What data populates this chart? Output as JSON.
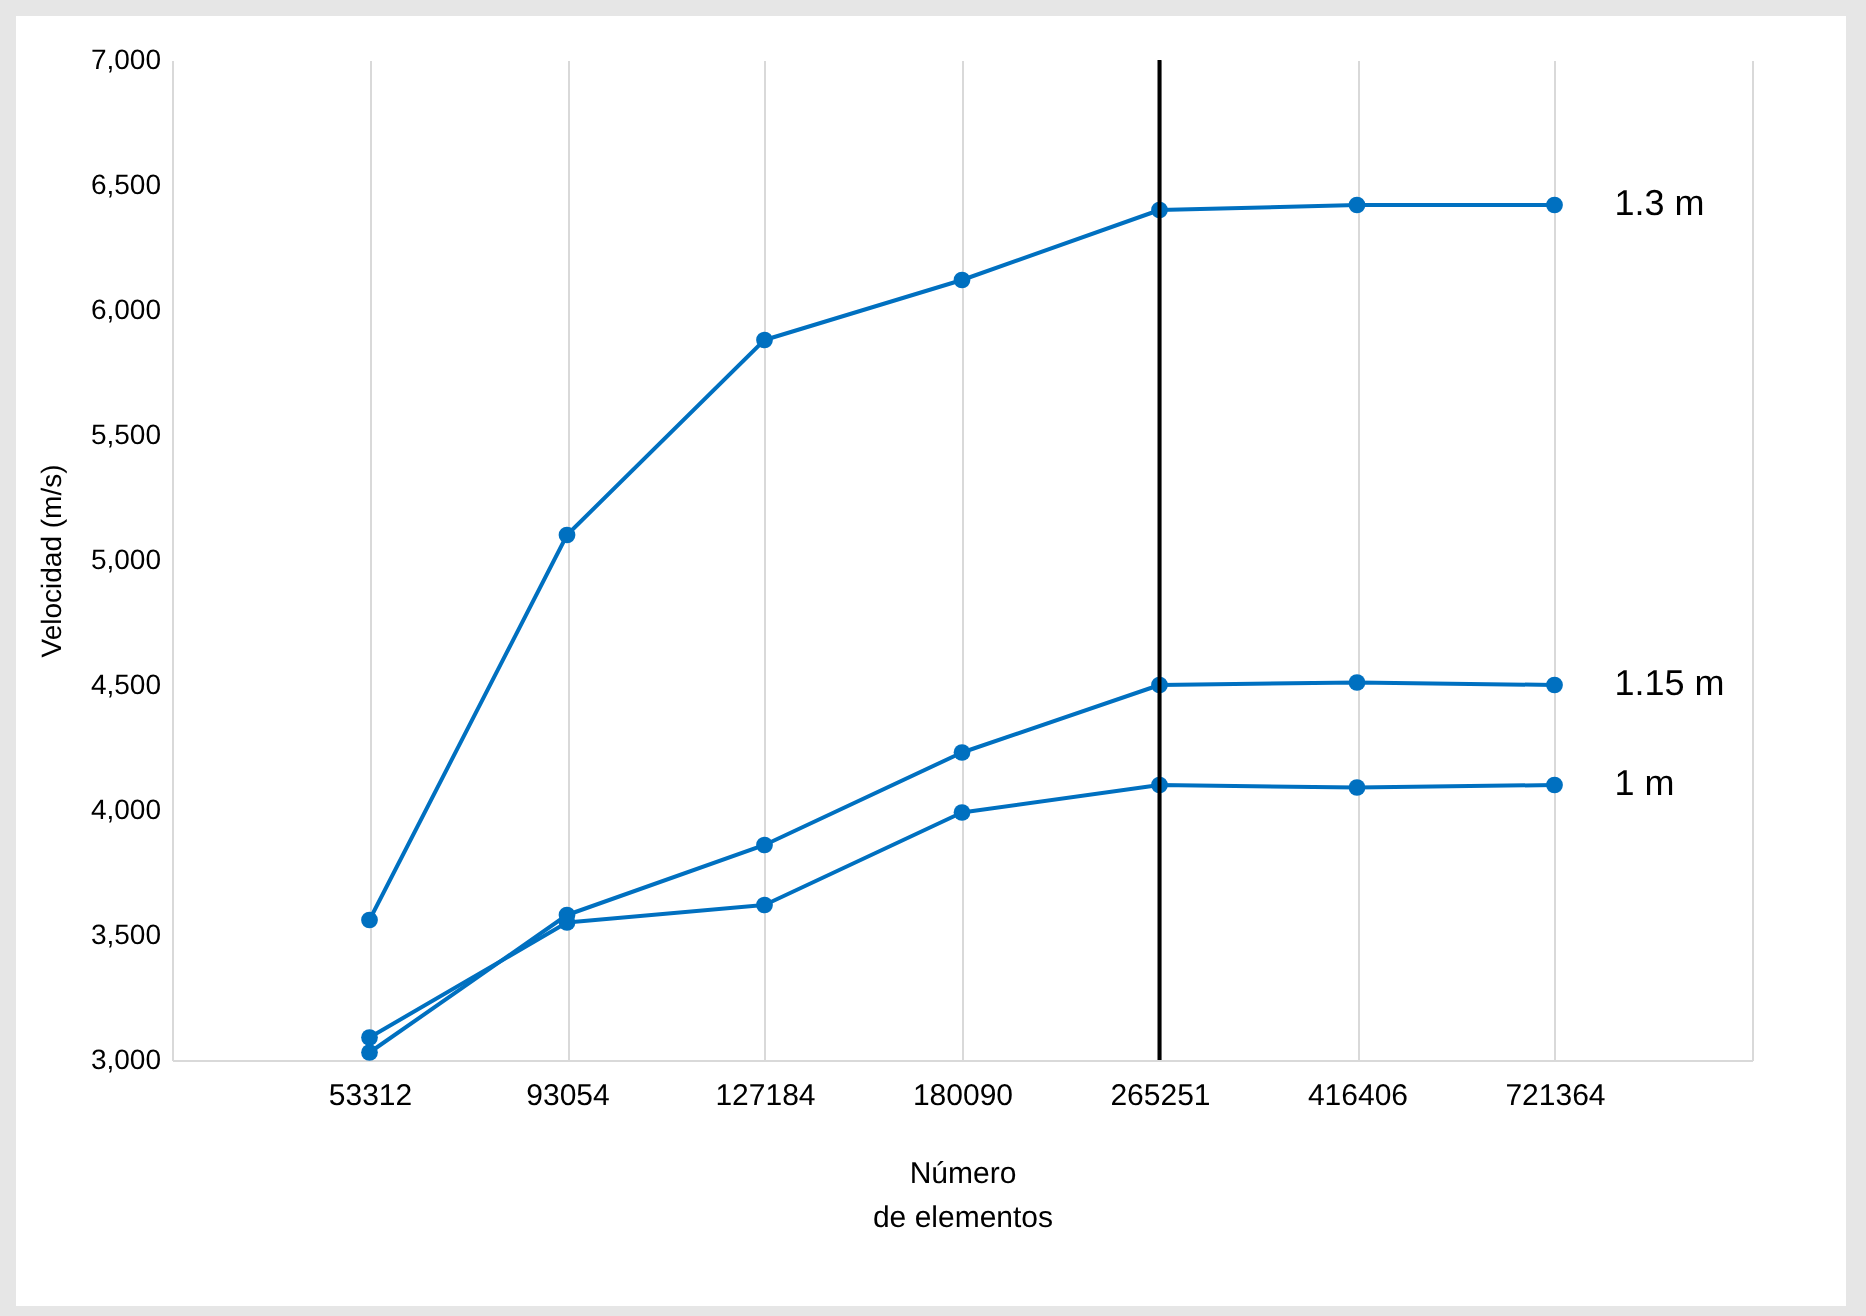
{
  "chart_data": {
    "type": "line",
    "xlabel": "Número\nde elementos",
    "ylabel": "Velocidad (m/s)",
    "categories": [
      null,
      "53312",
      "93054",
      "127184",
      "180090",
      "265251",
      "416406",
      "721364",
      null
    ],
    "series": [
      {
        "name": "1.3 m",
        "color": "#0070c0",
        "values": [
          null,
          3560,
          5100,
          5880,
          6120,
          6400,
          6420,
          6420,
          null
        ]
      },
      {
        "name": "1.15 m",
        "color": "#0070c0",
        "values": [
          null,
          3030,
          3580,
          3860,
          4230,
          4500,
          4510,
          4500,
          null
        ]
      },
      {
        "name": "1 m",
        "color": "#0070c0",
        "values": [
          null,
          3090,
          3550,
          3620,
          3990,
          4100,
          4090,
          4100,
          null
        ]
      }
    ],
    "ylim": [
      3000,
      7000
    ],
    "yticks": [
      {
        "value": 3000,
        "label": "3,000"
      },
      {
        "value": 3500,
        "label": "3,500"
      },
      {
        "value": 4000,
        "label": "4,000"
      },
      {
        "value": 4500,
        "label": "4,500"
      },
      {
        "value": 5000,
        "label": "5,000"
      },
      {
        "value": 5500,
        "label": "5,500"
      },
      {
        "value": 6000,
        "label": "6,000"
      },
      {
        "value": 6500,
        "label": "6,500"
      },
      {
        "value": 7000,
        "label": "7,000"
      }
    ],
    "ref_lines": [
      {
        "axis": "x",
        "value": "265251",
        "color": "#000000"
      }
    ],
    "grid": "x",
    "legend": false,
    "marker": "circle",
    "line_style": "solid"
  }
}
